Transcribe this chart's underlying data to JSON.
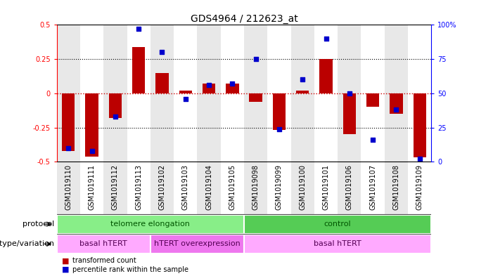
{
  "title": "GDS4964 / 212623_at",
  "samples": [
    "GSM1019110",
    "GSM1019111",
    "GSM1019112",
    "GSM1019113",
    "GSM1019102",
    "GSM1019103",
    "GSM1019104",
    "GSM1019105",
    "GSM1019098",
    "GSM1019099",
    "GSM1019100",
    "GSM1019101",
    "GSM1019106",
    "GSM1019107",
    "GSM1019108",
    "GSM1019109"
  ],
  "bar_values": [
    -0.42,
    -0.46,
    -0.18,
    0.34,
    0.15,
    0.02,
    0.07,
    0.07,
    -0.06,
    -0.27,
    0.02,
    0.25,
    -0.3,
    -0.1,
    -0.15,
    -0.47
  ],
  "dot_values": [
    10,
    8,
    33,
    97,
    80,
    46,
    56,
    57,
    75,
    24,
    60,
    90,
    50,
    16,
    38,
    2
  ],
  "ylim_left": [
    -0.5,
    0.5
  ],
  "ylim_right": [
    0,
    100
  ],
  "bar_color": "#bb0000",
  "dot_color": "#0000cc",
  "hline_color": "#cc0000",
  "dotted_color": "#000000",
  "bg_color": "#ffffff",
  "plot_bg": "#ffffff",
  "protocol_groups": [
    {
      "label": "telomere elongation",
      "start": 0,
      "end": 8,
      "color": "#88ee88"
    },
    {
      "label": "control",
      "start": 8,
      "end": 16,
      "color": "#55cc55"
    }
  ],
  "genotype_groups": [
    {
      "label": "basal hTERT",
      "start": 0,
      "end": 4,
      "color": "#ffaaff"
    },
    {
      "label": "hTERT overexpression",
      "start": 4,
      "end": 8,
      "color": "#ee77ee"
    },
    {
      "label": "basal hTERT",
      "start": 8,
      "end": 16,
      "color": "#ffaaff"
    }
  ],
  "yticks_left": [
    -0.5,
    -0.25,
    0,
    0.25,
    0.5
  ],
  "yticks_right": [
    0,
    25,
    50,
    75,
    100
  ],
  "row_label_protocol": "protocol",
  "row_label_genotype": "genotype/variation",
  "legend_bar": "transformed count",
  "legend_dot": "percentile rank within the sample",
  "title_fontsize": 10,
  "tick_fontsize": 7,
  "annotation_fontsize": 8,
  "legend_fontsize": 7
}
